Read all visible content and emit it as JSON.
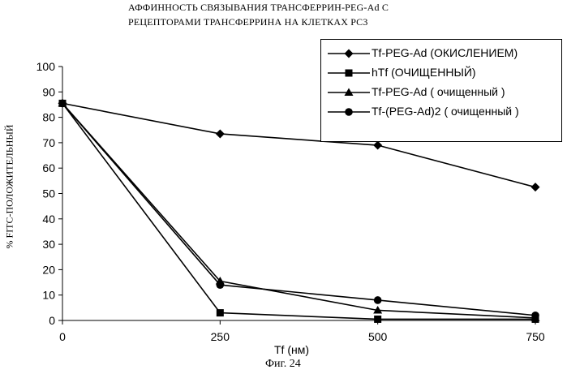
{
  "chart_data": {
    "type": "line",
    "title_line1": "АФФИННОСТЬ СВЯЗЫВАНИЯ ТРАНСФЕРРИН-PEG-Ad С",
    "title_line2": "РЕЦЕПТОРАМИ ТРАНСФЕРРИНА НА КЛЕТКАХ PC3",
    "xlabel": "Tf (нм)",
    "ylabel": "% FITC-ПОЛОЖИТЕЛЬНЫЙ",
    "x": [
      0,
      250,
      500,
      750
    ],
    "xlim": [
      0,
      750
    ],
    "ylim": [
      0,
      100
    ],
    "yticks": [
      "0",
      "10",
      "20",
      "30",
      "40",
      "50",
      "60",
      "70",
      "80",
      "90",
      "100"
    ],
    "xticks": [
      "0",
      "250",
      "500",
      "750"
    ],
    "grid": false,
    "legend_position": "top-right",
    "series": [
      {
        "name": "Tf-PEG-Ad   (ОКИСЛЕНИЕМ)",
        "marker": "diamond",
        "values": [
          85.5,
          73.5,
          69,
          52.5
        ]
      },
      {
        "name": "hTf    (ОЧИЩЕННЫЙ)",
        "marker": "square",
        "values": [
          85.5,
          3,
          0.5,
          0.5
        ]
      },
      {
        "name": "Tf-PEG-Ad ( очищенный )",
        "marker": "triangle",
        "values": [
          85.5,
          15.5,
          4,
          1
        ]
      },
      {
        "name": "Tf-(PEG-Ad)2 ( очищенный )",
        "marker": "circle",
        "values": [
          85.5,
          14,
          8,
          2
        ]
      }
    ]
  },
  "caption": "Фиг. 24"
}
